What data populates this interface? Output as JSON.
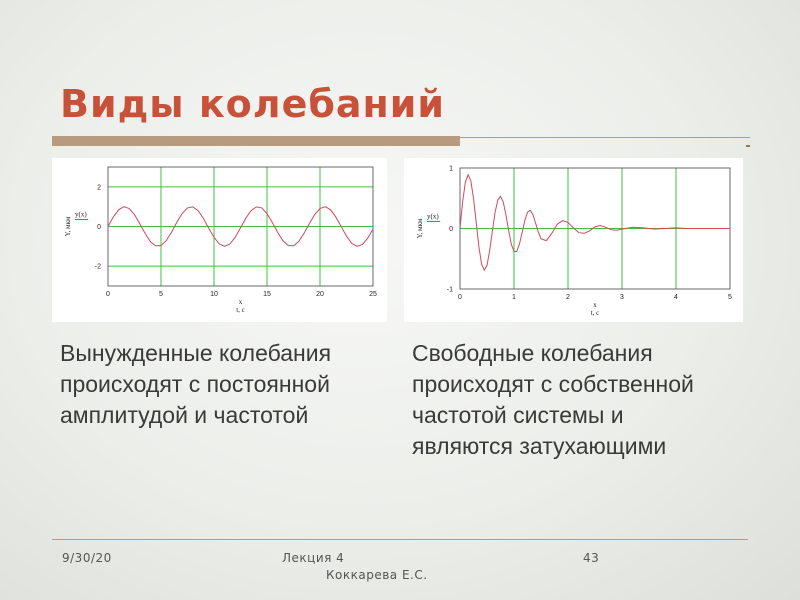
{
  "slide": {
    "title": "Виды колебаний",
    "caption_left": [
      "Вынужденные колебания",
      "происходят с постоянной",
      "амплитудой и частотой"
    ],
    "caption_right": [
      "Свободные колебания",
      "происходят с собственной",
      "частотой системы и",
      "являются затухающими"
    ]
  },
  "footer": {
    "date": "9/30/20",
    "lecture": "Лекция 4",
    "page": "43",
    "author": "Коккарева Е.С."
  },
  "colors": {
    "title": "#c8513a",
    "rule": "#b69b7e",
    "grid": "#3fbf3f",
    "curve": "#d04a5a"
  },
  "chart_data": [
    {
      "type": "line",
      "ylabel": "Y, мкм",
      "xlabel": [
        "x",
        "t, с"
      ],
      "legend": "y(x)",
      "xlim": [
        0,
        25
      ],
      "ylim": [
        -3,
        3
      ],
      "xticks": [
        0,
        5,
        10,
        15,
        20,
        25
      ],
      "yticks": [
        -2,
        0,
        2
      ],
      "grid": true,
      "series": [
        {
          "name": "y(x)",
          "x": [
            0,
            0.5,
            1,
            1.5,
            2,
            2.5,
            3,
            3.5,
            4,
            4.5,
            5,
            5.5,
            6,
            6.5,
            7,
            7.5,
            8,
            8.5,
            9,
            9.5,
            10,
            10.5,
            11,
            11.5,
            12,
            12.5,
            13,
            13.5,
            14,
            14.5,
            15,
            15.5,
            16,
            16.5,
            17,
            17.5,
            18,
            18.5,
            19,
            19.5,
            20,
            20.5,
            21,
            21.5,
            22,
            22.5,
            23,
            23.5,
            24,
            24.5,
            25
          ],
          "y": [
            0,
            0.48,
            0.84,
            1,
            0.91,
            0.6,
            0.14,
            -0.35,
            -0.76,
            -0.98,
            -0.96,
            -0.71,
            -0.28,
            0.22,
            0.66,
            0.94,
            0.99,
            0.8,
            0.41,
            -0.08,
            -0.54,
            -0.88,
            -1,
            -0.88,
            -0.54,
            -0.07,
            0.42,
            0.8,
            0.99,
            0.94,
            0.65,
            0.2,
            -0.29,
            -0.72,
            -0.96,
            -0.98,
            -0.75,
            -0.34,
            0.15,
            0.6,
            0.91,
            1,
            0.84,
            0.47,
            0,
            -0.49,
            -0.85,
            -1,
            -0.91,
            -0.59,
            -0.13
          ]
        }
      ]
    },
    {
      "type": "line",
      "ylabel": "Y, мкм",
      "xlabel": [
        "x",
        "t, с"
      ],
      "legend": "y(x)",
      "xlim": [
        0,
        5
      ],
      "ylim": [
        -1,
        1
      ],
      "xticks": [
        0,
        1,
        2,
        3,
        4,
        5
      ],
      "yticks": [
        -1,
        0,
        1
      ],
      "grid": true,
      "series": [
        {
          "name": "y(x)",
          "x": [
            0,
            0.05,
            0.1,
            0.15,
            0.2,
            0.25,
            0.3,
            0.35,
            0.4,
            0.45,
            0.5,
            0.55,
            0.6,
            0.65,
            0.7,
            0.75,
            0.8,
            0.85,
            0.9,
            0.95,
            1,
            1.05,
            1.1,
            1.15,
            1.2,
            1.25,
            1.3,
            1.35,
            1.4,
            1.45,
            1.5,
            1.6,
            1.7,
            1.8,
            1.9,
            2,
            2.1,
            2.2,
            2.3,
            2.4,
            2.5,
            2.6,
            2.7,
            2.8,
            2.9,
            3,
            3.2,
            3.4,
            3.6,
            3.8,
            4,
            4.2,
            4.4,
            4.6,
            4.8,
            5
          ],
          "y": [
            0,
            0.45,
            0.77,
            0.89,
            0.79,
            0.5,
            0.1,
            -0.3,
            -0.59,
            -0.69,
            -0.61,
            -0.36,
            -0.04,
            0.27,
            0.47,
            0.53,
            0.44,
            0.23,
            -0.03,
            -0.26,
            -0.38,
            -0.38,
            -0.26,
            -0.07,
            0.13,
            0.27,
            0.3,
            0.23,
            0.09,
            -0.06,
            -0.17,
            -0.2,
            -0.08,
            0.07,
            0.13,
            0.1,
            0.01,
            -0.07,
            -0.08,
            -0.04,
            0.03,
            0.05,
            0.02,
            -0.02,
            -0.03,
            -0.01,
            0.02,
            0.01,
            -0.01,
            0,
            0.01,
            0,
            0,
            0,
            0,
            0
          ]
        }
      ]
    }
  ]
}
